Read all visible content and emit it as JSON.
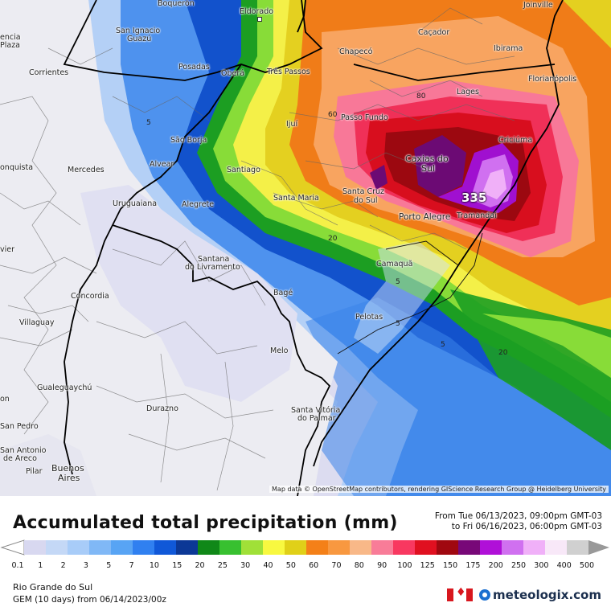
{
  "title": "Accumulated total precipitation (mm)",
  "period": {
    "from": "From Tue 06/13/2023, 09:00pm GMT-03",
    "to": "to Fri 06/16/2023, 06:00pm GMT-03"
  },
  "legend": {
    "labels": [
      "0.1",
      "1",
      "2",
      "3",
      "5",
      "7",
      "10",
      "15",
      "20",
      "25",
      "30",
      "40",
      "50",
      "60",
      "70",
      "80",
      "90",
      "100",
      "125",
      "150",
      "175",
      "200",
      "250",
      "300",
      "400",
      "500"
    ],
    "colors": [
      "#d8d8f0",
      "#c4d8f6",
      "#a8ccf8",
      "#80b8f6",
      "#58a4f4",
      "#3080f0",
      "#1058d8",
      "#0c3896",
      "#108818",
      "#38c030",
      "#a0e038",
      "#f8f840",
      "#e0d018",
      "#f48018",
      "#f89840",
      "#f8b888",
      "#f87c98",
      "#f83860",
      "#e01020",
      "#a00810",
      "#780878",
      "#b010d8",
      "#d070f0",
      "#f0b0f8",
      "#f8e8f8",
      "#d0d0d0"
    ]
  },
  "region": "Rio Grande do Sul",
  "model": "GEM (10 days) from 06/14/2023/00z",
  "brand": "meteologix.com",
  "flag_icon": "canada-flag-icon",
  "attribution": "Map data © OpenStreetMap contributors, rendering GIScience Research Group @ Heidelberg University",
  "max_value": "335",
  "contour_labels": [
    "80",
    "60",
    "5",
    "20",
    "5",
    "5",
    "5",
    "20"
  ],
  "cities": [
    "Boquerón",
    "Eldorado",
    "Joinville",
    "San Ignacio",
    "Guazú",
    "Caçador",
    "Chapecó",
    "Ibirama",
    "Posadas",
    "Oberá",
    "Três Passos",
    "Florianópolis",
    "Corrientes",
    "Lages",
    "Passo Fundo",
    "Ijuí",
    "São Borja",
    "Caxias do",
    "Sul",
    "Criciúma",
    "Alvear",
    "Santiago",
    "Mercedes",
    "Santa Cruz",
    "do Sul",
    "Santa Maria",
    "Uruguaiana",
    "Porto Alegre",
    "Tramandaí",
    "Alegrete",
    "Santana",
    "do Livramento",
    "Camaquã",
    "Concordia",
    "Bagé",
    "Villaguay",
    "Pelotas",
    "Melo",
    "Gualeguaychú",
    "Durazno",
    "Santa Vitória",
    "do Palmar",
    "Buenos",
    "Aires",
    "Pilar",
    "San Antonio",
    "de Areco",
    "San Pedro",
    "encia",
    "Plaza",
    "onquista",
    "vier",
    "on"
  ]
}
